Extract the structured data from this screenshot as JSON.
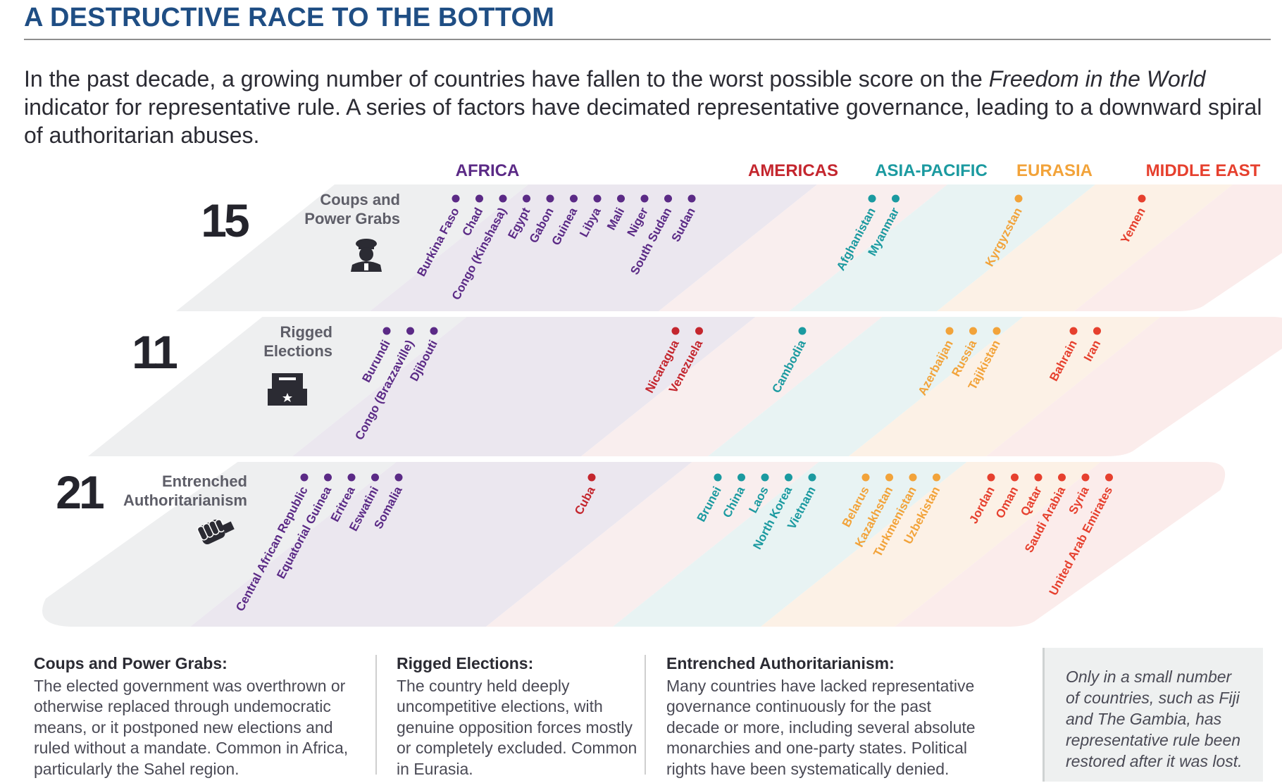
{
  "title": "A DESTRUCTIVE RACE TO THE BOTTOM",
  "intro": {
    "before": "In the past decade, a growing number of countries have fallen to the worst possible score on the ",
    "italic": "Freedom in the World",
    "after": " indicator for representative rule. A series of factors have decimated representative governance, leading to a downward spiral of authoritarian abuses."
  },
  "regions": [
    {
      "name": "AFRICA",
      "color": "#5b2a86"
    },
    {
      "name": "AMERICAS",
      "color": "#c4262e"
    },
    {
      "name": "ASIA-PACIFIC",
      "color": "#1b9aa0"
    },
    {
      "name": "EURASIA",
      "color": "#f2a33a"
    },
    {
      "name": "MIDDLE EAST",
      "color": "#e6402e"
    }
  ],
  "rows": [
    {
      "count": "15",
      "label": [
        "Coups and",
        "Power Grabs"
      ],
      "icon": "military-officer-icon",
      "countries": {
        "AFRICA": [
          "Burkina Faso",
          "Chad",
          "Congo (Kinshasa)",
          "Egypt",
          "Gabon",
          "Guinea",
          "Libya",
          "Mali",
          "Niger",
          "South Sudan",
          "Sudan"
        ],
        "AMERICAS": [],
        "ASIA-PACIFIC": [
          "Afghanistan",
          "Myanmar"
        ],
        "EURASIA": [
          "Kyrgyzstan"
        ],
        "MIDDLE EAST": [
          "Yemen"
        ]
      }
    },
    {
      "count": "11",
      "label": [
        "Rigged",
        "Elections"
      ],
      "icon": "ballot-box-icon",
      "countries": {
        "AFRICA": [
          "Burundi",
          "Congo (Brazzaville)",
          "Djibouti"
        ],
        "AMERICAS": [
          "Nicaragua",
          "Venezuela"
        ],
        "ASIA-PACIFIC": [
          "Cambodia"
        ],
        "EURASIA": [
          "Azerbaijan",
          "Russia",
          "Tajikistan"
        ],
        "MIDDLE EAST": [
          "Bahrain",
          "Iran"
        ]
      }
    },
    {
      "count": "21",
      "label": [
        "Entrenched",
        "Authoritarianism"
      ],
      "icon": "clenched-fist-icon",
      "countries": {
        "AFRICA": [
          "Central African Republic",
          "Equatorial Guinea",
          "Eritrea",
          "Eswatini",
          "Somalia"
        ],
        "AMERICAS": [
          "Cuba"
        ],
        "ASIA-PACIFIC": [
          "Brunei",
          "China",
          "Laos",
          "North Korea",
          "Vietnam"
        ],
        "EURASIA": [
          "Belarus",
          "Kazakhstan",
          "Turkmenistan",
          "Uzbekistan"
        ],
        "MIDDLE EAST": [
          "Jordan",
          "Oman",
          "Qatar",
          "Saudi Arabia",
          "Syria",
          "United Arab Emirates"
        ]
      }
    }
  ],
  "legend": [
    {
      "heading": "Coups and Power Grabs:",
      "text": "The elected government was overthrown or otherwise replaced through undemocratic means, or it postponed new elections and ruled without a mandate. Common in Africa, particularly the Sahel region."
    },
    {
      "heading": "Rigged Elections:",
      "text": "The country held deeply uncompetitive elections, with genuine opposition forces mostly or completely excluded. Common in Eurasia."
    },
    {
      "heading": "Entrenched Authoritarianism:",
      "text": "Many countries have lacked representative governance continuously for the past decade or more, including several absolute monarchies and one-party states. Political rights have been systematically denied."
    }
  ],
  "note": "Only in a small number of countries, such as Fiji and The Gambia, has representative rule been restored after it was lost."
}
